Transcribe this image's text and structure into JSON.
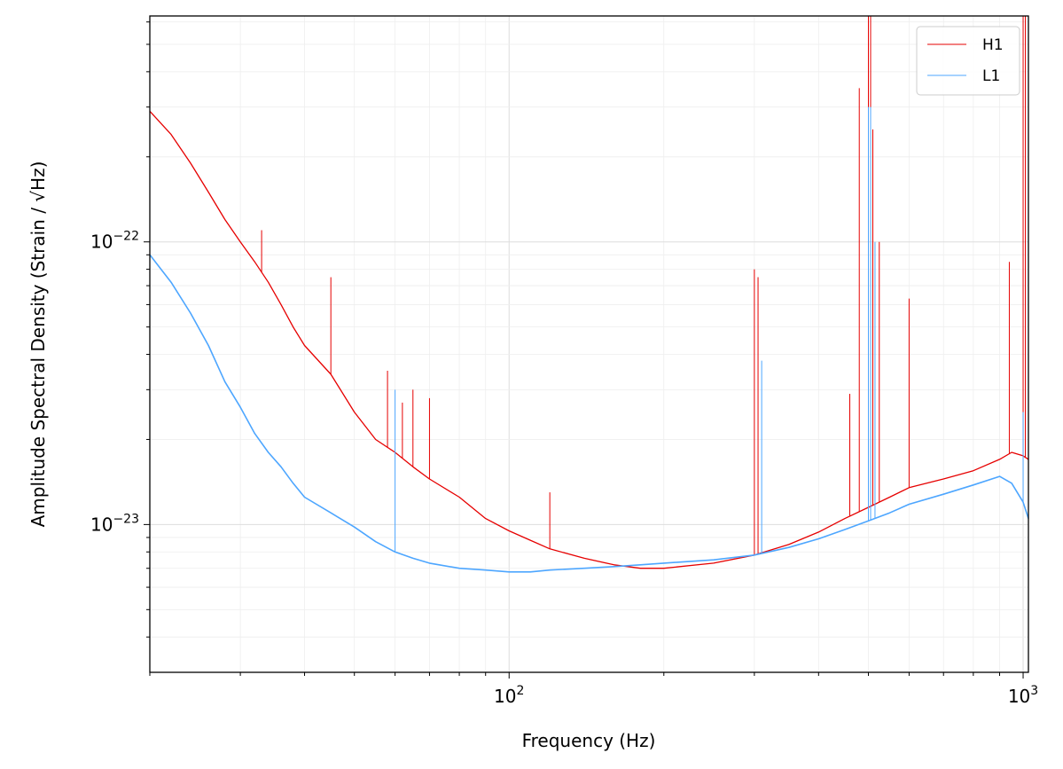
{
  "chart_data": {
    "type": "line",
    "xlabel": "Frequency (Hz)",
    "ylabel": "Amplitude Spectral Density (Strain / √Hz)",
    "xscale": "log",
    "yscale": "log",
    "xlim": [
      20,
      1024
    ],
    "ylim": [
      3e-24,
      6.3e-22
    ],
    "grid": true,
    "legend": "top-right",
    "x_ticks": [
      {
        "value": 100,
        "base": "10",
        "exp": "2"
      },
      {
        "value": 1000,
        "base": "10",
        "exp": "3"
      }
    ],
    "y_ticks": [
      {
        "value": 1e-22,
        "base": "10",
        "exp": "−22"
      },
      {
        "value": 1e-23,
        "base": "10",
        "exp": "−23"
      }
    ],
    "series": [
      {
        "name": "H1",
        "color": "#e60000",
        "x": [
          20,
          22,
          24,
          26,
          28,
          30,
          32,
          34,
          36,
          38,
          40,
          45,
          50,
          55,
          60,
          65,
          70,
          80,
          90,
          100,
          110,
          120,
          140,
          160,
          180,
          200,
          250,
          300,
          350,
          400,
          450,
          500,
          550,
          600,
          700,
          800,
          900,
          950,
          1000,
          1024
        ],
        "y": [
          2.9e-22,
          2.4e-22,
          1.9e-22,
          1.5e-22,
          1.2e-22,
          1e-22,
          8.5e-23,
          7.2e-23,
          6e-23,
          5e-23,
          4.3e-23,
          3.4e-23,
          2.5e-23,
          2e-23,
          1.8e-23,
          1.6e-23,
          1.45e-23,
          1.25e-23,
          1.05e-23,
          9.5e-24,
          8.8e-24,
          8.2e-24,
          7.6e-24,
          7.2e-24,
          7e-24,
          7e-24,
          7.3e-24,
          7.8e-24,
          8.5e-24,
          9.4e-24,
          1.05e-23,
          1.15e-23,
          1.25e-23,
          1.35e-23,
          1.45e-23,
          1.55e-23,
          1.7e-23,
          1.8e-23,
          1.75e-23,
          1.7e-23
        ],
        "lines": [
          [
            33,
            1.1e-22
          ],
          [
            45,
            7.5e-23
          ],
          [
            58,
            3.5e-23
          ],
          [
            62,
            2.7e-23
          ],
          [
            65,
            3e-23
          ],
          [
            70,
            2.8e-23
          ],
          [
            120,
            1.3e-23
          ],
          [
            300,
            8e-23
          ],
          [
            305,
            7.5e-23
          ],
          [
            460,
            2.9e-23
          ],
          [
            480,
            3.5e-22
          ],
          [
            500,
            6.3e-22
          ],
          [
            505,
            6.3e-22
          ],
          [
            510,
            2.5e-22
          ],
          [
            525,
            1e-22
          ],
          [
            600,
            6.3e-23
          ],
          [
            940,
            8.5e-23
          ],
          [
            1000,
            6.3e-22
          ],
          [
            1010,
            6.3e-22
          ]
        ]
      },
      {
        "name": "L1",
        "color": "#4da6ff",
        "x": [
          20,
          22,
          24,
          26,
          28,
          30,
          32,
          34,
          36,
          38,
          40,
          45,
          50,
          55,
          60,
          65,
          70,
          80,
          90,
          100,
          110,
          120,
          140,
          160,
          180,
          200,
          250,
          300,
          350,
          400,
          450,
          500,
          550,
          600,
          700,
          800,
          900,
          950,
          1000,
          1024
        ],
        "y": [
          9e-23,
          7.2e-23,
          5.6e-23,
          4.3e-23,
          3.2e-23,
          2.6e-23,
          2.1e-23,
          1.8e-23,
          1.6e-23,
          1.4e-23,
          1.25e-23,
          1.1e-23,
          9.8e-24,
          8.7e-24,
          8e-24,
          7.6e-24,
          7.3e-24,
          7e-24,
          6.9e-24,
          6.8e-24,
          6.8e-24,
          6.9e-24,
          7e-24,
          7.1e-24,
          7.2e-24,
          7.3e-24,
          7.5e-24,
          7.8e-24,
          8.3e-24,
          8.9e-24,
          9.6e-24,
          1.03e-23,
          1.1e-23,
          1.18e-23,
          1.28e-23,
          1.38e-23,
          1.48e-23,
          1.4e-23,
          1.2e-23,
          1.05e-23
        ],
        "lines": [
          [
            60,
            3e-23
          ],
          [
            310,
            3.8e-23
          ],
          [
            500,
            3e-22
          ],
          [
            505,
            3e-22
          ],
          [
            515,
            1e-22
          ],
          [
            1000,
            2.5e-23
          ]
        ]
      }
    ]
  }
}
